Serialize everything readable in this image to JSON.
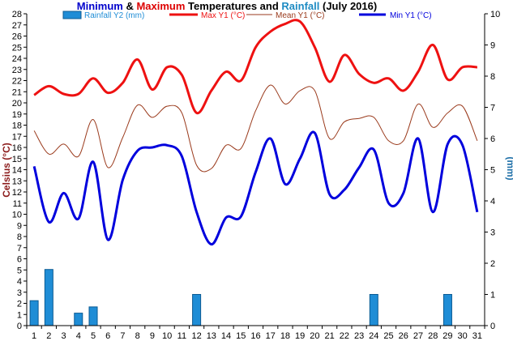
{
  "chart_data": {
    "type": "line",
    "title_parts": [
      {
        "text": "Minimum",
        "color": "#0000cc"
      },
      {
        "text": " & ",
        "color": "#000000"
      },
      {
        "text": "Maximum",
        "color": "#dd0000"
      },
      {
        "text": " Temperatures and ",
        "color": "#000000"
      },
      {
        "text": "Rainfall",
        "color": "#1e8bc3"
      },
      {
        "text": " (July 2016)",
        "color": "#000000"
      }
    ],
    "ylabel_left": "Celsius (°C)",
    "ylabel_right": "(mm)",
    "ylim_left": [
      0,
      28
    ],
    "ylim_right": [
      0,
      10
    ],
    "left_ticks": [
      "0",
      "1",
      "2",
      "3",
      "4",
      "5",
      "6",
      "7",
      "8",
      "9",
      "10",
      "11",
      "12",
      "13",
      "14",
      "15",
      "16",
      "17",
      "18",
      "19",
      "20",
      "21",
      "22",
      "23",
      "24",
      "25",
      "26",
      "27",
      "28"
    ],
    "right_ticks": [
      "0",
      "1",
      "2",
      "3",
      "4",
      "5",
      "6",
      "7",
      "8",
      "9",
      "10"
    ],
    "categories": [
      "1",
      "2",
      "3",
      "4",
      "5",
      "6",
      "7",
      "8",
      "9",
      "10",
      "11",
      "12",
      "13",
      "14",
      "15",
      "16",
      "17",
      "18",
      "19",
      "20",
      "21",
      "22",
      "23",
      "24",
      "25",
      "26",
      "27",
      "28",
      "29",
      "30",
      "31"
    ],
    "series": [
      {
        "name": "Rainfall Y2 (mm)",
        "kind": "bar",
        "axis": "right",
        "color": "#1f8dd6",
        "values": [
          0.8,
          1.8,
          0,
          0.4,
          0.6,
          0,
          0,
          0,
          0,
          0,
          0,
          1.0,
          0,
          0,
          0,
          0,
          0,
          0,
          0,
          0,
          0,
          0,
          0,
          1.0,
          0,
          0,
          0,
          0,
          1.0,
          0,
          0
        ]
      },
      {
        "name": "Max Y1 (°C)",
        "kind": "line",
        "axis": "left",
        "color": "#ee1111",
        "width": 3,
        "values": [
          20.7,
          21.5,
          20.8,
          20.8,
          22.2,
          20.9,
          21.8,
          23.9,
          21.2,
          23.2,
          22.5,
          19.1,
          21.1,
          22.8,
          22.0,
          25.0,
          26.4,
          27.1,
          27.3,
          25.0,
          21.9,
          24.3,
          22.6,
          21.8,
          22.2,
          21.1,
          22.8,
          25.2,
          22.1,
          23.2,
          23.2
        ]
      },
      {
        "name": "Mean Y1 (°C)",
        "kind": "line",
        "axis": "left",
        "color": "#9a3a1c",
        "width": 1,
        "values": [
          17.5,
          15.4,
          16.3,
          15.2,
          18.5,
          14.2,
          16.9,
          19.8,
          18.7,
          19.7,
          19.1,
          14.4,
          14.1,
          16.2,
          15.9,
          19.3,
          21.6,
          19.9,
          21.1,
          21.1,
          16.8,
          18.3,
          18.6,
          18.7,
          16.6,
          16.6,
          19.9,
          17.8,
          19.1,
          19.7,
          16.6
        ]
      },
      {
        "name": "Min Y1 (°C)",
        "kind": "line",
        "axis": "left",
        "color": "#0000dd",
        "width": 3,
        "values": [
          14.3,
          9.3,
          11.9,
          9.6,
          14.7,
          7.7,
          13.1,
          15.7,
          16.0,
          16.2,
          15.2,
          10.2,
          7.3,
          9.7,
          9.8,
          13.8,
          16.8,
          12.7,
          15.0,
          17.3,
          11.8,
          12.2,
          14.2,
          15.8,
          11.0,
          11.9,
          16.8,
          10.2,
          16.3,
          16.2,
          10.2
        ]
      }
    ]
  }
}
